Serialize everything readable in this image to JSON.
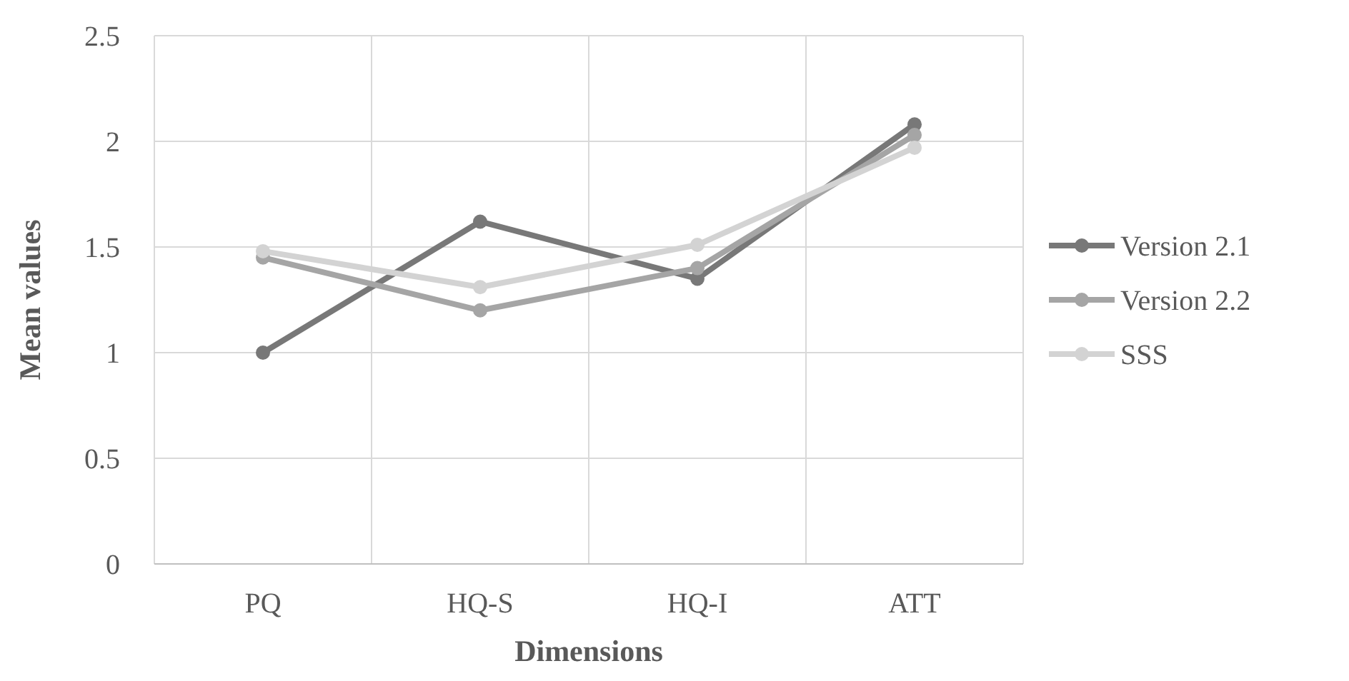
{
  "chart_data": {
    "type": "line",
    "xlabel": "Dimensions",
    "ylabel": "Mean values",
    "categories": [
      "PQ",
      "HQ-S",
      "HQ-I",
      "ATT"
    ],
    "series": [
      {
        "name": "Version 2.1",
        "color": "#787878",
        "values": [
          1.0,
          1.62,
          1.35,
          2.08
        ]
      },
      {
        "name": "Version 2.2",
        "color": "#a5a5a5",
        "values": [
          1.45,
          1.2,
          1.4,
          2.03
        ]
      },
      {
        "name": "SSS",
        "color": "#d3d3d3",
        "values": [
          1.48,
          1.31,
          1.51,
          1.97
        ]
      }
    ],
    "ylim": [
      0,
      2.5
    ],
    "yticks": [
      0,
      0.5,
      1,
      1.5,
      2,
      2.5
    ],
    "grid": true,
    "legend": "right",
    "marker": "circle",
    "line_style": "solid"
  }
}
